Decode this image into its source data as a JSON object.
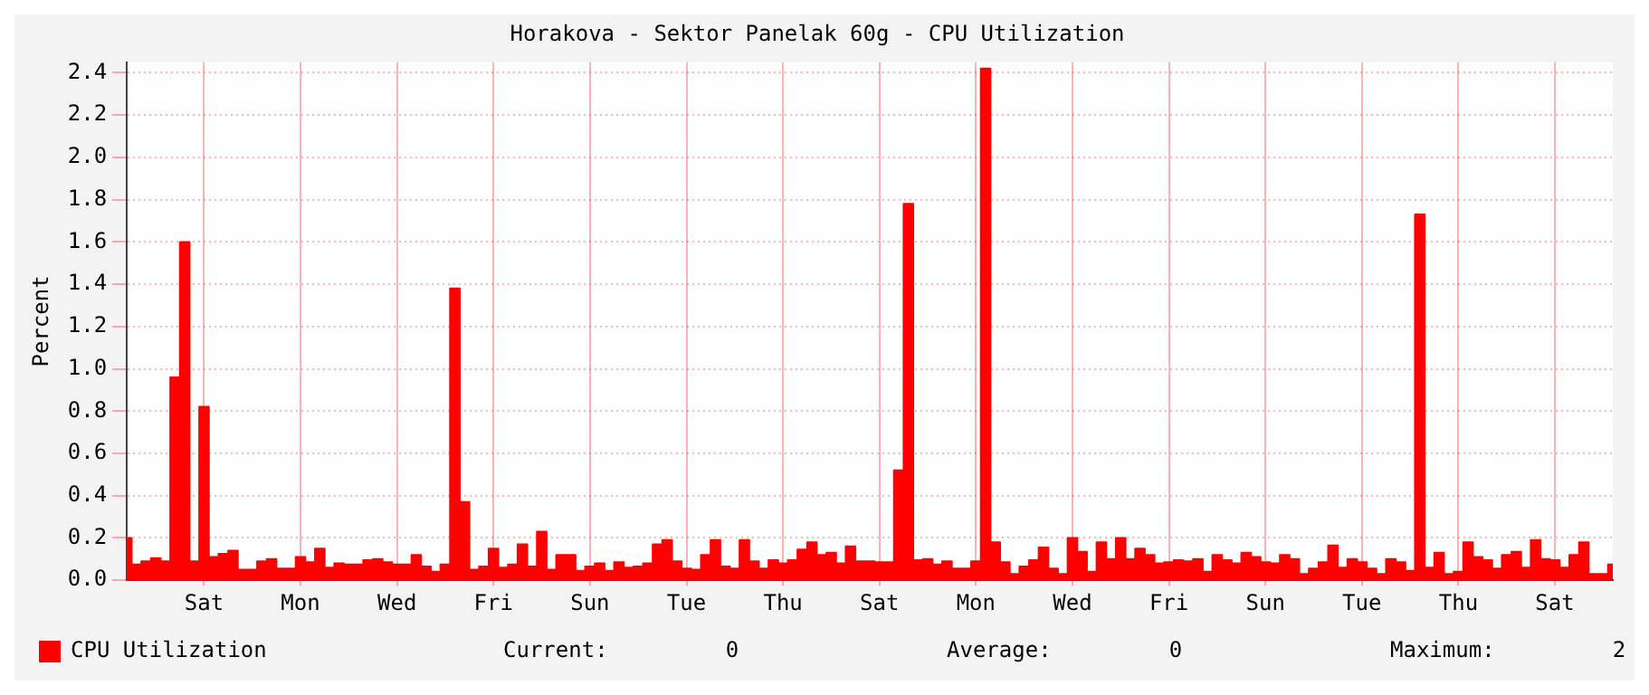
{
  "chart_data": {
    "type": "area",
    "title": "Horakova - Sektor Panelak 60g - CPU Utilization",
    "ylabel": "Percent",
    "categories": [
      null,
      null,
      null,
      null,
      null,
      null,
      null,
      null,
      "Sat",
      null,
      null,
      null,
      null,
      null,
      null,
      null,
      null,
      null,
      "Mon",
      null,
      null,
      null,
      null,
      null,
      null,
      null,
      null,
      null,
      "Wed",
      null,
      null,
      null,
      null,
      null,
      null,
      null,
      null,
      null,
      "Fri",
      null,
      null,
      null,
      null,
      null,
      null,
      null,
      null,
      null,
      "Sun",
      null,
      null,
      null,
      null,
      null,
      null,
      null,
      null,
      null,
      "Tue",
      null,
      null,
      null,
      null,
      null,
      null,
      null,
      null,
      null,
      "Thu",
      null,
      null,
      null,
      null,
      null,
      null,
      null,
      null,
      null,
      "Sat",
      null,
      null,
      null,
      null,
      null,
      null,
      null,
      null,
      null,
      "Mon",
      null,
      null,
      null,
      null,
      null,
      null,
      null,
      null,
      null,
      "Wed",
      null,
      null,
      null,
      null,
      null,
      null,
      null,
      null,
      null,
      "Fri",
      null,
      null,
      null,
      null,
      null,
      null,
      null,
      null,
      null,
      "Sun",
      null,
      null,
      null,
      null,
      null,
      null,
      null,
      null,
      null,
      "Tue",
      null,
      null,
      null,
      null,
      null,
      null,
      null,
      null,
      null,
      "Thu",
      null,
      null,
      null,
      null,
      null,
      null,
      null,
      null,
      null,
      "Sat",
      null,
      null,
      null,
      null,
      null,
      null
    ],
    "series": [
      {
        "name": "CPU Utilization",
        "color": "#ff0000",
        "values": [
          0.2,
          0.075,
          0.09,
          0.105,
          0.09,
          0.96,
          1.6,
          0.09,
          0.82,
          0.11,
          0.125,
          0.14,
          0.05,
          0.05,
          0.09,
          0.1,
          0.055,
          0.055,
          0.11,
          0.085,
          0.15,
          0.06,
          0.08,
          0.075,
          0.075,
          0.095,
          0.1,
          0.085,
          0.075,
          0.075,
          0.12,
          0.065,
          0.04,
          0.075,
          1.38,
          0.37,
          0.05,
          0.065,
          0.15,
          0.06,
          0.075,
          0.17,
          0.065,
          0.23,
          0.05,
          0.12,
          0.12,
          0.045,
          0.065,
          0.08,
          0.045,
          0.085,
          0.06,
          0.065,
          0.08,
          0.17,
          0.19,
          0.09,
          0.055,
          0.05,
          0.12,
          0.19,
          0.065,
          0.055,
          0.19,
          0.09,
          0.055,
          0.095,
          0.08,
          0.095,
          0.145,
          0.18,
          0.12,
          0.13,
          0.08,
          0.16,
          0.09,
          0.09,
          0.085,
          0.085,
          0.52,
          1.78,
          0.095,
          0.1,
          0.075,
          0.09,
          0.055,
          0.055,
          0.09,
          2.42,
          0.18,
          0.085,
          0.03,
          0.065,
          0.095,
          0.155,
          0.055,
          0.03,
          0.2,
          0.135,
          0.04,
          0.18,
          0.1,
          0.2,
          0.1,
          0.15,
          0.12,
          0.08,
          0.085,
          0.095,
          0.09,
          0.1,
          0.04,
          0.12,
          0.095,
          0.08,
          0.13,
          0.11,
          0.085,
          0.08,
          0.12,
          0.1,
          0.03,
          0.055,
          0.085,
          0.165,
          0.06,
          0.1,
          0.085,
          0.055,
          0.03,
          0.1,
          0.085,
          0.045,
          1.73,
          0.06,
          0.13,
          0.03,
          0.04,
          0.18,
          0.11,
          0.095,
          0.055,
          0.12,
          0.135,
          0.06,
          0.19,
          0.1,
          0.095,
          0.06,
          0.12,
          0.18,
          0.03,
          0.03,
          0.075
        ]
      }
    ],
    "ylim": [
      0,
      2.45
    ],
    "yticks": [
      {
        "value": 0,
        "label": "0.0"
      },
      0.2,
      0.4,
      0.6,
      0.8,
      {
        "value": 1,
        "label": "1.0"
      },
      1.2,
      1.4,
      1.6,
      1.8,
      {
        "value": 2,
        "label": "2.0"
      },
      2.2,
      2.4
    ],
    "grid": true,
    "legend": "bottom",
    "annotations": [
      "Current:         0",
      "Average:         0",
      "Maximum:         2"
    ]
  }
}
